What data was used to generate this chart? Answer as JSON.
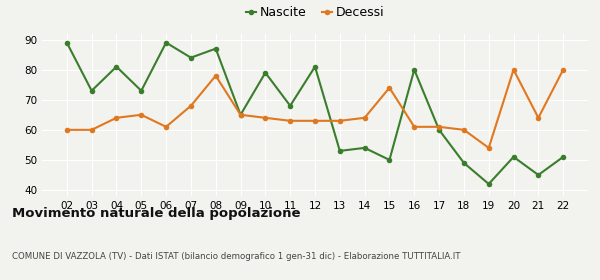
{
  "years": [
    "02",
    "03",
    "04",
    "05",
    "06",
    "07",
    "08",
    "09",
    "10",
    "11",
    "12",
    "13",
    "14",
    "15",
    "16",
    "17",
    "18",
    "19",
    "20",
    "21",
    "22"
  ],
  "nascite": [
    89,
    73,
    81,
    73,
    89,
    84,
    87,
    65,
    79,
    68,
    81,
    53,
    54,
    50,
    80,
    60,
    49,
    42,
    51,
    45,
    51
  ],
  "decessi": [
    60,
    60,
    64,
    65,
    61,
    68,
    78,
    65,
    64,
    63,
    63,
    63,
    64,
    74,
    61,
    61,
    60,
    54,
    80,
    64,
    80
  ],
  "nascite_color": "#3a7d2c",
  "decessi_color": "#e07820",
  "bg_color": "#f2f2ee",
  "ylim": [
    40,
    90
  ],
  "yticks": [
    40,
    45,
    50,
    55,
    60,
    65,
    70,
    75,
    80,
    85,
    90
  ],
  "ytick_labels": [
    "40",
    "",
    "50",
    "",
    "60",
    "",
    "70",
    "",
    "80",
    "",
    "90"
  ],
  "title": "Movimento naturale della popolazione",
  "subtitle": "COMUNE DI VAZZOLA (TV) - Dati ISTAT (bilancio demografico 1 gen-31 dic) - Elaborazione TUTTITALIA.IT",
  "legend_nascite": "Nascite",
  "legend_decessi": "Decessi",
  "marker_size": 4,
  "line_width": 1.5
}
